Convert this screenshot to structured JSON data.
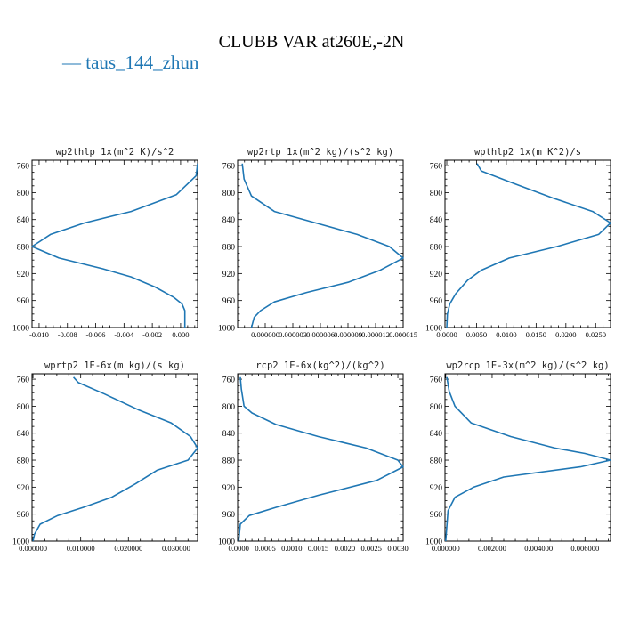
{
  "title": "CLUBB VAR at260E,-2N",
  "legend": {
    "label": "taus_144_zhun",
    "color": "#1f77b4"
  },
  "chart_data": [
    {
      "type": "line",
      "title": "wp2thlp  1x(m^2 K)/s^2",
      "xlim": [
        -0.0105,
        0.0012
      ],
      "ylim": [
        1000,
        752
      ],
      "xticks": [
        -0.01,
        -0.008,
        -0.006,
        -0.004,
        -0.002,
        0.0
      ],
      "xtick_labels": [
        "-0.010",
        "-0.008",
        "-0.006",
        "-0.004",
        "-0.002",
        "0.000"
      ],
      "yticks": [
        760,
        800,
        840,
        880,
        920,
        960,
        1000
      ],
      "ytick_labels": [
        "760",
        "800",
        "840",
        "880",
        "920",
        "960",
        "1000"
      ],
      "series": [
        {
          "values_x": [
            0.0012,
            0.0011,
            -0.0003,
            -0.0035,
            -0.0068,
            -0.0092,
            -0.0105,
            -0.0086,
            -0.0055,
            -0.0035,
            -0.0018,
            -0.0005,
            0.0001,
            0.0003,
            0.0003
          ],
          "values_y": [
            757,
            775,
            803,
            828,
            845,
            862,
            880,
            897,
            913,
            925,
            940,
            955,
            965,
            975,
            1000
          ]
        }
      ]
    },
    {
      "type": "line",
      "title": "wp2rtp  1x(m^2 kg)/(s^2 kg)",
      "xlim": [
        -3e-06,
        1.5e-05
      ],
      "ylim": [
        1000,
        752
      ],
      "xticks": [
        0.0,
        3e-06,
        6e-06,
        9e-06,
        1.2e-05,
        1.5e-05
      ],
      "xtick_labels": [
        "0.000000",
        "0.000003",
        "0.000006",
        "0.000009",
        "0.000012",
        "0.000015"
      ],
      "yticks": [
        760,
        800,
        840,
        880,
        920,
        960,
        1000
      ],
      "ytick_labels": [
        "760",
        "800",
        "840",
        "880",
        "920",
        "960",
        "1000"
      ],
      "series": [
        {
          "values_x": [
            -2.5e-06,
            -2.3e-06,
            -1.5e-06,
            1e-06,
            5.5e-06,
            1e-05,
            1.35e-05,
            1.5e-05,
            1.25e-05,
            9e-06,
            4.5e-06,
            1e-06,
            -5e-07,
            -1.2e-06,
            -1.5e-06
          ],
          "values_y": [
            757,
            780,
            805,
            828,
            845,
            862,
            880,
            897,
            915,
            933,
            948,
            962,
            975,
            985,
            1000
          ]
        }
      ]
    },
    {
      "type": "line",
      "title": "wpthlp2  1x(m K^2)/s",
      "xlim": [
        -0.0003,
        0.0275
      ],
      "ylim": [
        1000,
        752
      ],
      "xticks": [
        0.0,
        0.005,
        0.01,
        0.015,
        0.02,
        0.025
      ],
      "xtick_labels": [
        "0.0000",
        "0.0050",
        "0.0100",
        "0.0150",
        "0.0200",
        "0.0250"
      ],
      "yticks": [
        760,
        800,
        840,
        880,
        920,
        960,
        1000
      ],
      "ytick_labels": [
        "760",
        "800",
        "840",
        "880",
        "920",
        "960",
        "1000"
      ],
      "series": [
        {
          "values_x": [
            0.0051,
            0.0058,
            0.0108,
            0.0178,
            0.0245,
            0.0275,
            0.0255,
            0.0185,
            0.0105,
            0.0058,
            0.0035,
            0.0015,
            0.0005,
            0.0001,
            0.0
          ],
          "values_y": [
            757,
            768,
            785,
            808,
            828,
            845,
            862,
            880,
            897,
            915,
            930,
            950,
            965,
            980,
            1000
          ]
        }
      ]
    },
    {
      "type": "line",
      "title": "wprtp2  1E-6x(m kg)/(s kg)",
      "xlim": [
        -0.0002,
        0.0345
      ],
      "ylim": [
        1000,
        752
      ],
      "xticks": [
        0.0,
        0.01,
        0.02,
        0.03
      ],
      "xtick_labels": [
        "0.000000",
        "0.010000",
        "0.020000",
        "0.030000"
      ],
      "yticks": [
        760,
        800,
        840,
        880,
        920,
        960,
        1000
      ],
      "ytick_labels": [
        "760",
        "800",
        "840",
        "880",
        "920",
        "960",
        "1000"
      ],
      "series": [
        {
          "values_x": [
            0.0085,
            0.0095,
            0.015,
            0.022,
            0.029,
            0.033,
            0.0345,
            0.0325,
            0.026,
            0.0215,
            0.0165,
            0.0105,
            0.0052,
            0.0015,
            0.0003,
            0.0
          ],
          "values_y": [
            757,
            765,
            782,
            805,
            825,
            845,
            862,
            880,
            895,
            915,
            935,
            950,
            962,
            975,
            990,
            1000
          ]
        }
      ]
    },
    {
      "type": "line",
      "title": "rcp2  1E-6x(kg^2)/(kg^2)",
      "xlim": [
        -2e-05,
        0.0031
      ],
      "ylim": [
        1000,
        752
      ],
      "xticks": [
        0.0,
        0.0005,
        0.001,
        0.0015,
        0.002,
        0.0025,
        0.003
      ],
      "xtick_labels": [
        "0.0000",
        "0.0005",
        "0.0010",
        "0.0015",
        "0.0020",
        "0.0025",
        "0.0030"
      ],
      "yticks": [
        760,
        800,
        840,
        880,
        920,
        960,
        1000
      ],
      "ytick_labels": [
        "760",
        "800",
        "840",
        "880",
        "920",
        "960",
        "1000"
      ],
      "series": [
        {
          "values_x": [
            3e-05,
            5e-05,
            0.0001,
            0.00025,
            0.0007,
            0.0015,
            0.0024,
            0.003,
            0.0031,
            0.0026,
            0.0015,
            0.0007,
            0.0002,
            3e-05,
            0.0
          ],
          "values_y": [
            757,
            775,
            800,
            810,
            827,
            845,
            862,
            880,
            890,
            910,
            932,
            950,
            962,
            975,
            1000
          ]
        }
      ]
    },
    {
      "type": "line",
      "title": "wp2rcp  1E-3x(m^2 kg)/(s^2 kg)",
      "xlim": [
        -3e-05,
        0.0071
      ],
      "ylim": [
        1000,
        752
      ],
      "xticks": [
        0.0,
        0.002,
        0.004,
        0.006
      ],
      "xtick_labels": [
        "0.000000",
        "0.002000",
        "0.004000",
        "0.006000"
      ],
      "yticks": [
        760,
        800,
        840,
        880,
        920,
        960,
        1000
      ],
      "ytick_labels": [
        "760",
        "800",
        "840",
        "880",
        "920",
        "960",
        "1000"
      ],
      "series": [
        {
          "values_x": [
            5e-05,
            0.00015,
            0.0004,
            0.0011,
            0.0028,
            0.0047,
            0.006,
            0.0071,
            0.0058,
            0.0025,
            0.0012,
            0.0004,
            0.0001,
            0.0
          ],
          "values_y": [
            757,
            778,
            800,
            825,
            845,
            862,
            870,
            880,
            890,
            905,
            920,
            935,
            955,
            1000
          ]
        }
      ]
    }
  ]
}
